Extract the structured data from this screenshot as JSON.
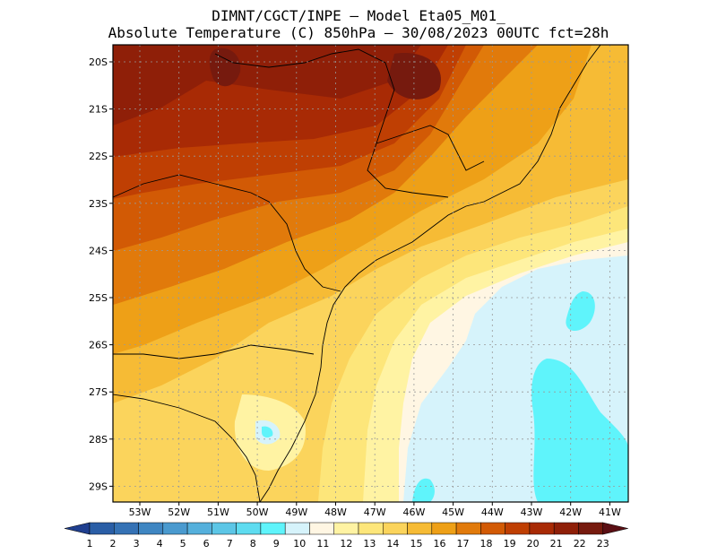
{
  "title_line1": "DIMNT/CGCT/INPE –  Model Eta05_M01_",
  "title_line2": "Absolute Temperature (C) 850hPa –  30/08/2023 00UTC fct=28h",
  "map": {
    "lat_ticks": [
      "20S",
      "21S",
      "22S",
      "23S",
      "24S",
      "25S",
      "26S",
      "27S",
      "28S",
      "29S"
    ],
    "lon_ticks": [
      "53W",
      "52W",
      "51W",
      "50W",
      "49W",
      "48W",
      "47W",
      "46W",
      "45W",
      "44W",
      "43W",
      "42W",
      "41W"
    ],
    "grid": true
  },
  "colorbar": {
    "labels": [
      "1",
      "2",
      "3",
      "4",
      "5",
      "6",
      "7",
      "8",
      "9",
      "10",
      "11",
      "12",
      "13",
      "14",
      "15",
      "16",
      "17",
      "18",
      "19",
      "20",
      "21",
      "22",
      "23"
    ],
    "colors": [
      "#1f3f8f",
      "#2a5ea6",
      "#3572b5",
      "#3f86c2",
      "#4a9acf",
      "#55b0dc",
      "#5cc6e6",
      "#5edcf0",
      "#5ff4fb",
      "#d6f3fb",
      "#fff6e3",
      "#fff3a3",
      "#fde67a",
      "#fbd45c",
      "#f6bb35",
      "#eea017",
      "#e17a0b",
      "#d25a05",
      "#bf3f03",
      "#a82a05",
      "#8f1f08",
      "#761a0e",
      "#5b0f14"
    ]
  }
}
